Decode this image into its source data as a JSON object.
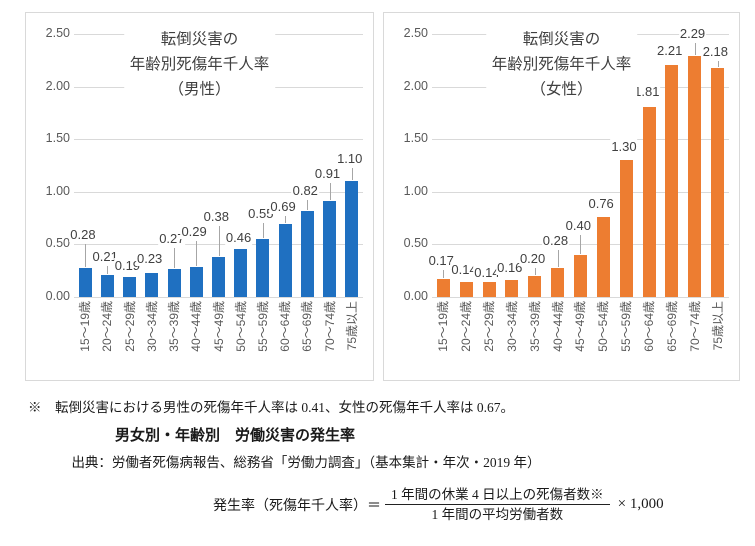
{
  "chart_data": [
    {
      "type": "bar",
      "title": "転倒災害の年齢別死傷年千人率（男性）",
      "title_lines": [
        "転倒災害の",
        "年齢別死傷年千人率",
        "（男性）"
      ],
      "categories": [
        "15〜19歳",
        "20〜24歳",
        "25〜29歳",
        "30〜34歳",
        "35〜39歳",
        "40〜44歳",
        "45〜49歳",
        "50〜54歳",
        "55〜59歳",
        "60〜64歳",
        "65〜69歳",
        "70〜74歳",
        "75歳以上"
      ],
      "values": [
        0.28,
        0.21,
        0.19,
        0.23,
        0.27,
        0.29,
        0.38,
        0.46,
        0.55,
        0.69,
        0.82,
        0.91,
        1.1
      ],
      "labels": [
        "0.28",
        "0.21",
        "0.19",
        "0.23",
        "0.27",
        "0.29",
        "0.38",
        "0.46",
        "0.55",
        "0.69",
        "0.82",
        "0.91",
        "1.10"
      ],
      "label_offsets": [
        26,
        11,
        4,
        7,
        23,
        28,
        33,
        4,
        18,
        10,
        13,
        20,
        15
      ],
      "y_ticks": [
        "2.50",
        "2.00",
        "1.50",
        "1.00",
        "0.50",
        "0.00"
      ],
      "ylim": [
        0,
        2.5
      ],
      "grid": true,
      "legend": "none",
      "bar_color": "#1f70c1",
      "xlabel": "",
      "ylabel": ""
    },
    {
      "type": "bar",
      "title": "転倒災害の年齢別死傷年千人率（女性）",
      "title_lines": [
        "転倒災害の",
        "年齢別死傷年千人率",
        "（女性）"
      ],
      "categories": [
        "15〜19歳",
        "20〜24歳",
        "25〜29歳",
        "30〜34歳",
        "35〜39歳",
        "40〜44歳",
        "45〜49歳",
        "50〜54歳",
        "55〜59歳",
        "60〜64歳",
        "65〜69歳",
        "70〜74歳",
        "75歳以上"
      ],
      "values": [
        0.17,
        0.14,
        0.14,
        0.16,
        0.2,
        0.28,
        0.4,
        0.76,
        1.3,
        1.81,
        2.21,
        2.29,
        2.18
      ],
      "labels": [
        "0.17",
        "0.14",
        "0.14",
        "0.16",
        "0.20",
        "0.28",
        "0.40",
        "0.76",
        "1.30",
        "1.81",
        "2.21",
        "2.29",
        "2.18"
      ],
      "label_offsets": [
        11,
        5,
        2,
        5,
        10,
        20,
        22,
        6,
        6,
        8,
        7,
        15,
        9
      ],
      "y_ticks": [
        "2.50",
        "2.00",
        "1.50",
        "1.00",
        "0.50",
        "0.00"
      ],
      "ylim": [
        0,
        2.5
      ],
      "grid": true,
      "legend": "none",
      "bar_color": "#ed7d31",
      "xlabel": "",
      "ylabel": ""
    }
  ],
  "footer": {
    "note": "※　転倒災害における男性の死傷年千人率は 0.41、女性の死傷年千人率は 0.67。",
    "heading": "男女別・年齢別　労働災害の発生率",
    "source": "出典：労働者死傷病報告、総務省「労働力調査」（基本集計・年次・2019 年）",
    "formula": {
      "lhs": "発生率（死傷年千人率）＝",
      "numerator": "1 年間の休業 4 日以上の死傷者数※",
      "denominator": "1 年間の平均労働者数",
      "multiplier": "× 1,000"
    }
  },
  "colors": {
    "male_bar": "#1f70c1",
    "female_bar": "#ed7d31",
    "gridline": "#d9d9d9",
    "axis_text": "#595959",
    "leader_line": "#a6a6a6"
  }
}
